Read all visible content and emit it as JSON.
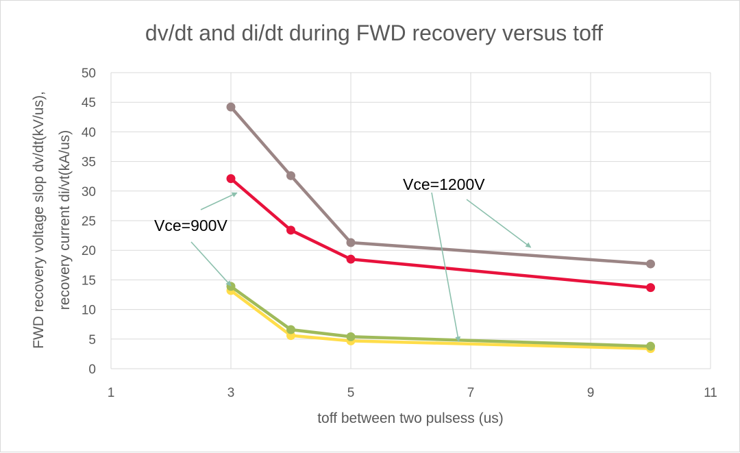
{
  "chart_data": {
    "type": "line",
    "title": "dv/dt and di/dt during FWD recovery versus toff",
    "xlabel": "toff between two pulsess (us)",
    "ylabel_line1": "FWD recovery voltage slop dv/dt(kV/us),",
    "ylabel_line2": "recovery current di/vt(kA/us)",
    "xlim": [
      1,
      11
    ],
    "ylim": [
      0,
      50
    ],
    "xticks": [
      1,
      3,
      5,
      7,
      9,
      11
    ],
    "yticks": [
      0,
      5,
      10,
      15,
      20,
      25,
      30,
      35,
      40,
      45,
      50
    ],
    "grid": true,
    "legend": "none",
    "series": [
      {
        "name": "dv/dt Vce=1200V",
        "color": "#9b8585",
        "x": [
          3,
          4,
          5,
          10
        ],
        "y": [
          44.2,
          32.6,
          21.3,
          17.7
        ]
      },
      {
        "name": "dv/dt Vce=900V",
        "color": "#e8123c",
        "x": [
          3,
          4,
          5,
          10
        ],
        "y": [
          32.1,
          23.4,
          18.5,
          13.7
        ]
      },
      {
        "name": "di/dt Vce=900V",
        "color": "#ffdd4a",
        "x": [
          3,
          4,
          5,
          10
        ],
        "y": [
          13.2,
          5.6,
          4.7,
          3.4
        ]
      },
      {
        "name": "di/dt Vce=1200V",
        "color": "#9fba5a",
        "x": [
          3,
          4,
          5,
          10
        ],
        "y": [
          13.9,
          6.6,
          5.4,
          3.8
        ]
      }
    ],
    "annotations": [
      {
        "text": "Vce=900V",
        "targets": [
          [
            3.1,
            29.7
          ],
          [
            3,
            14
          ]
        ]
      },
      {
        "text": "Vce=1200V",
        "targets": [
          [
            6.8,
            4.6
          ],
          [
            8,
            20.5
          ]
        ]
      }
    ],
    "arrow_color": "#8cc0ad"
  }
}
